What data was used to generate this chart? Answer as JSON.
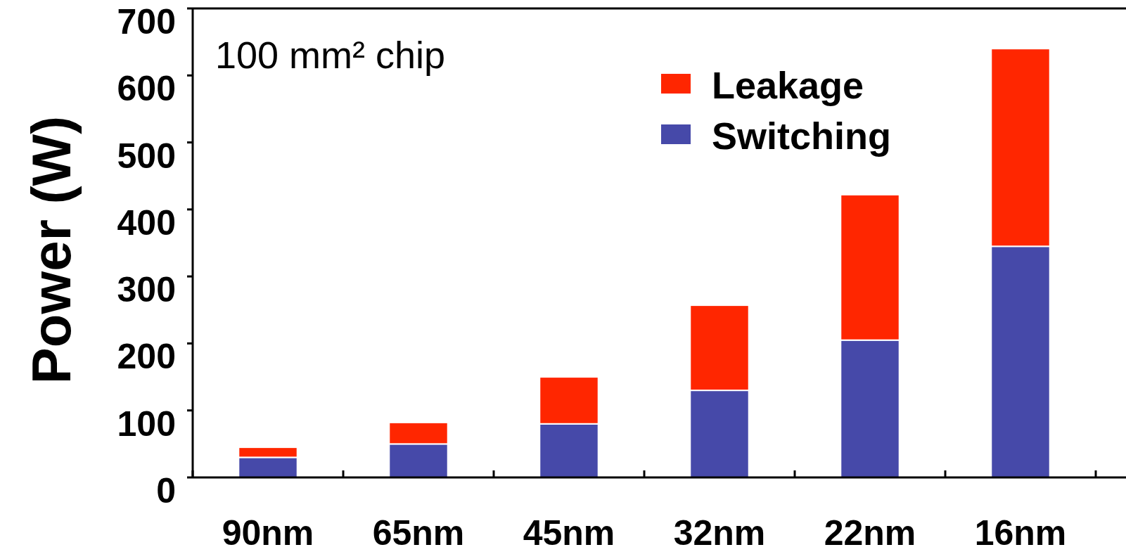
{
  "chart_data": {
    "type": "bar",
    "stacked": true,
    "ylabel": "Power (W)",
    "annotations": [
      "100 mm² chip"
    ],
    "categories": [
      "90nm",
      "65nm",
      "45nm",
      "32nm",
      "22nm",
      "16nm"
    ],
    "series": [
      {
        "name": "Switching",
        "color": "#4649a9",
        "values": [
          30,
          50,
          80,
          130,
          205,
          345
        ]
      },
      {
        "name": "Leakage",
        "color": "#ff2600",
        "values": [
          15,
          32,
          70,
          127,
          217,
          295
        ]
      }
    ],
    "ylim": [
      0,
      700
    ],
    "yticks": [
      0,
      100,
      200,
      300,
      400,
      500,
      600,
      700
    ],
    "legend": "top right",
    "grid": false
  }
}
